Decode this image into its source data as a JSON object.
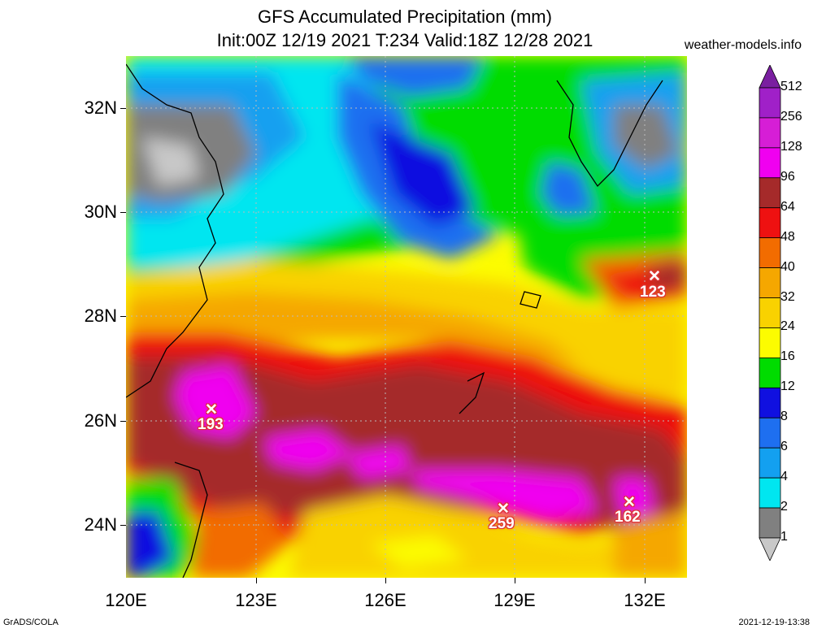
{
  "title_line1": "GFS Accumulated Precipitation (mm)",
  "title_line2": "Init:00Z 12/19 2021 T:234 Valid:18Z 12/28 2021",
  "site": "weather-models.info",
  "lat_labels": [
    "32N",
    "30N",
    "28N",
    "26N",
    "24N"
  ],
  "lon_labels": [
    "120E",
    "123E",
    "126E",
    "129E",
    "132E"
  ],
  "legend": {
    "levels": [
      "512",
      "256",
      "128",
      "96",
      "64",
      "48",
      "40",
      "32",
      "24",
      "16",
      "12",
      "8",
      "6",
      "4",
      "2",
      "1"
    ],
    "colors": [
      "#7a1fa0",
      "#a020c8",
      "#d61ed6",
      "#f000f0",
      "#a52a2a",
      "#ee1111",
      "#f26c00",
      "#f5a700",
      "#f9d200",
      "#fcfc00",
      "#00dc00",
      "#1010e0",
      "#1e6ff0",
      "#13a0f0",
      "#00e6f0",
      "#808080",
      "#c8c8c8"
    ]
  },
  "markers": [
    {
      "value": "193"
    },
    {
      "value": "123"
    },
    {
      "value": "259"
    },
    {
      "value": "162"
    }
  ],
  "footer_left": "GrADS/COLA",
  "footer_right": "2021-12-19-13:38"
}
